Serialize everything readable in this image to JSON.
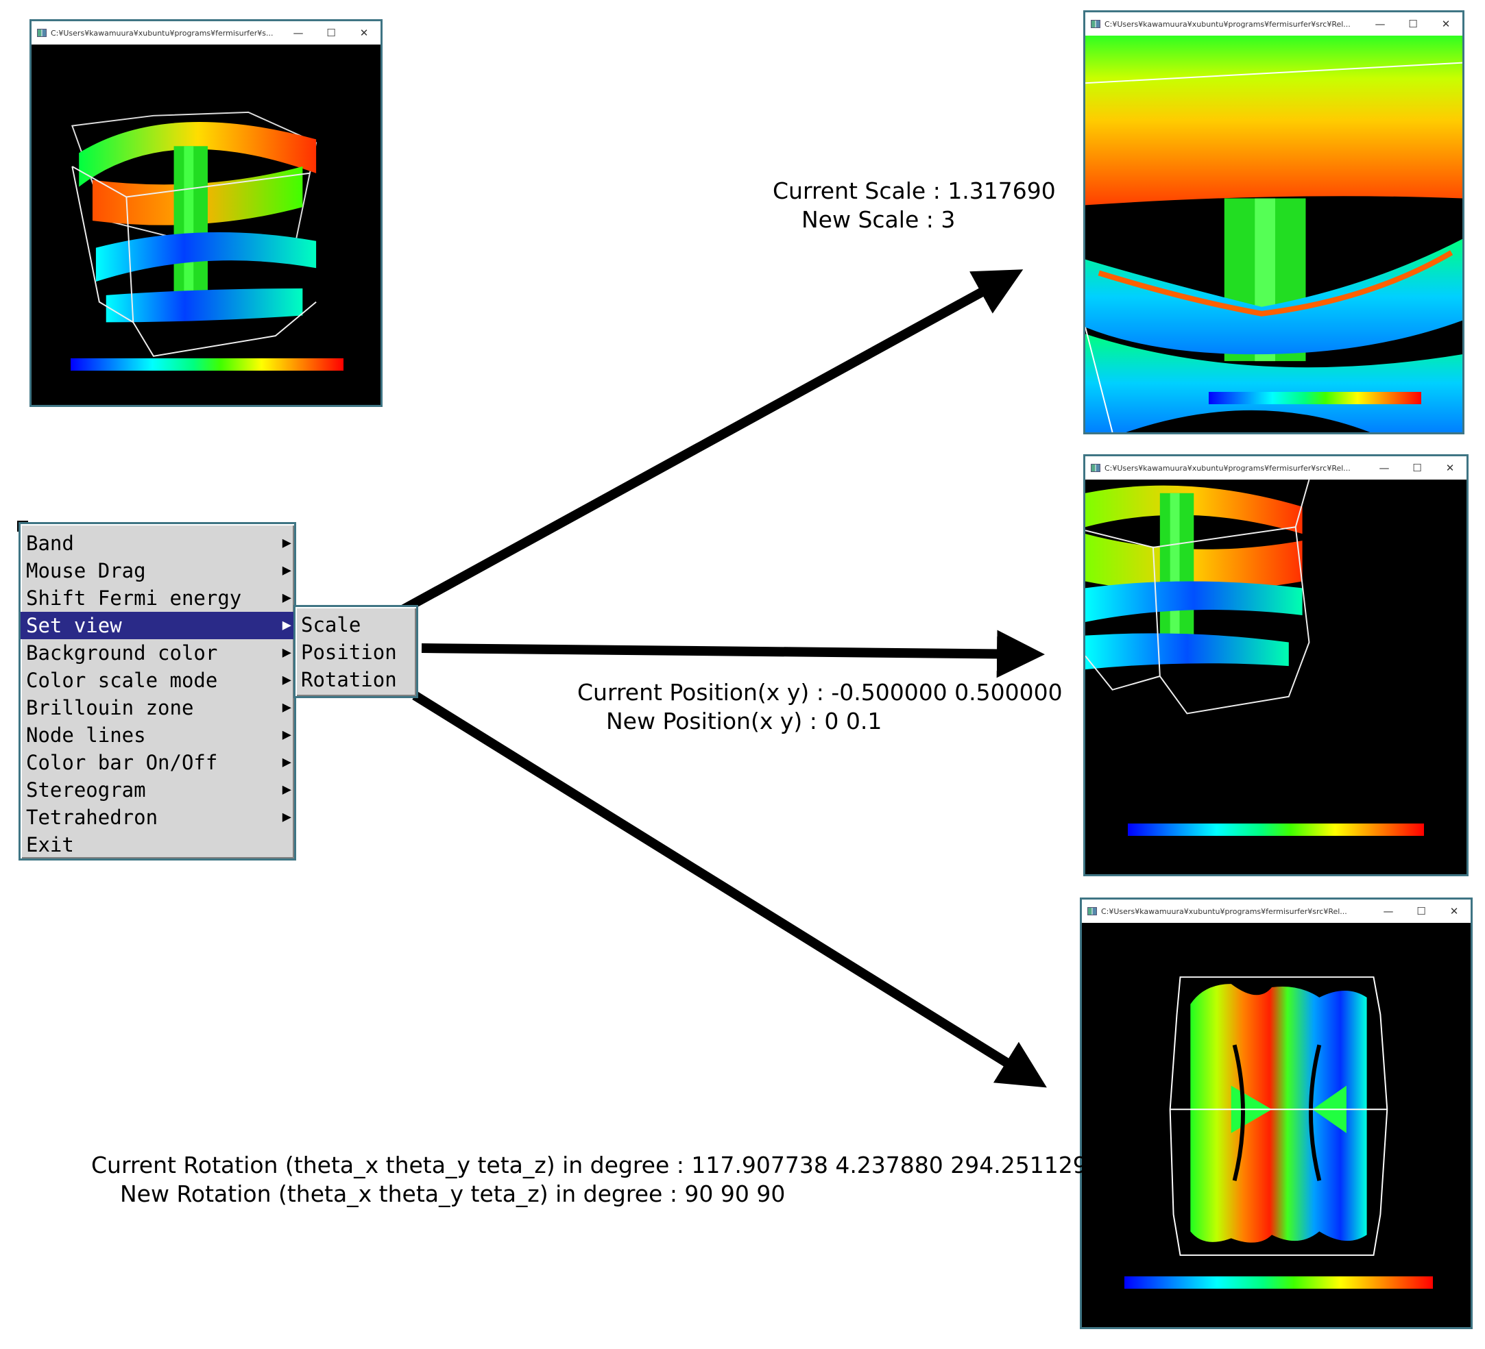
{
  "windows": {
    "original": {
      "title": "C:¥Users¥kawamuura¥xubuntu¥programs¥fermisurfer¥s..."
    },
    "scaled": {
      "title": "C:¥Users¥kawamuura¥xubuntu¥programs¥fermisurfer¥src¥Rel..."
    },
    "moved": {
      "title": "C:¥Users¥kawamuura¥xubuntu¥programs¥fermisurfer¥src¥Rel..."
    },
    "rotated": {
      "title": "C:¥Users¥kawamuura¥xubuntu¥programs¥fermisurfer¥src¥Rel..."
    },
    "controls": {
      "minimize": "—",
      "maximize": "☐",
      "close": "✕"
    }
  },
  "menu": {
    "items": [
      {
        "label": "Band"
      },
      {
        "label": "Mouse Drag"
      },
      {
        "label": "Shift Fermi energy"
      },
      {
        "label": "Set view"
      },
      {
        "label": "Background color"
      },
      {
        "label": "Color scale mode"
      },
      {
        "label": "Brillouin zone"
      },
      {
        "label": "Node lines"
      },
      {
        "label": "Color bar On/Off"
      },
      {
        "label": "Stereogram"
      },
      {
        "label": "Tetrahedron"
      },
      {
        "label": "Exit"
      }
    ],
    "submenu_arrow": "▶",
    "active_item": "Set view",
    "submenu": [
      {
        "label": "Scale"
      },
      {
        "label": "Position"
      },
      {
        "label": "Rotation"
      }
    ]
  },
  "annotations": {
    "scale": {
      "current": "Current Scale : 1.317690",
      "new": "New Scale : 3"
    },
    "position": {
      "current": "Current Position(x y) : -0.500000 0.500000",
      "new": "New Position(x y) : 0 0.1"
    },
    "rotation": {
      "current": "Current Rotation (theta_x theta_y teta_z) in degree : 117.907738 4.237880 294.251129",
      "new": "New Rotation (theta_x theta_y teta_z) in degree : 90 90 90"
    }
  },
  "colors": {
    "menu_bg": "#d6d6d6",
    "menu_highlight": "#2a2a88",
    "window_border": "#3f7584"
  }
}
